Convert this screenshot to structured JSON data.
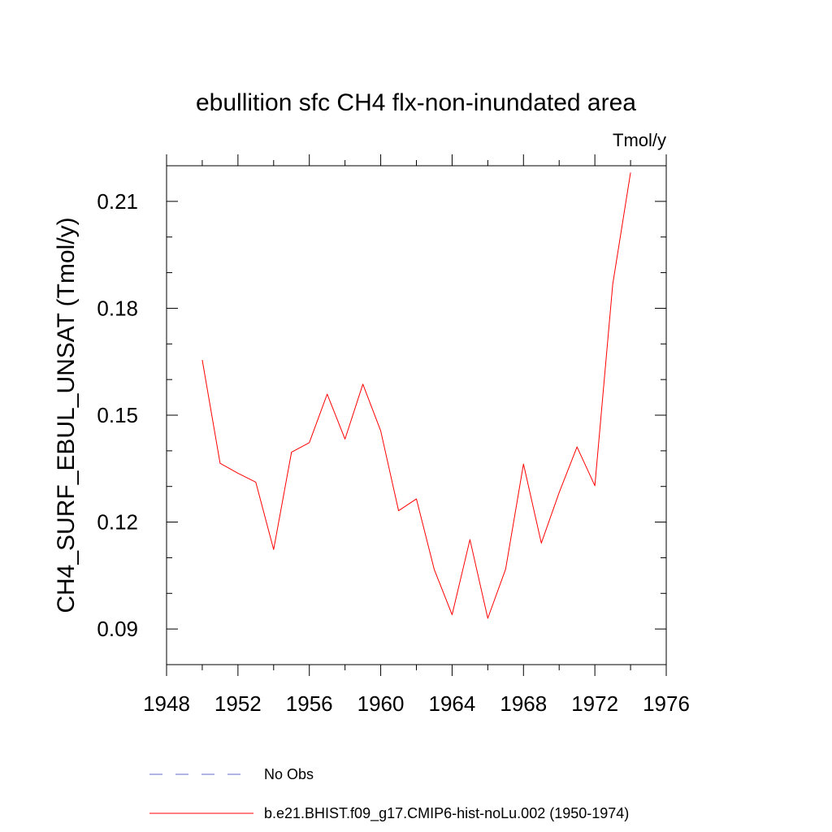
{
  "chart_data": {
    "type": "line",
    "title": "ebullition sfc CH4 flx-non-inundated area",
    "units_label": "Tmol/y",
    "xlabel": "",
    "ylabel": "CH4_SURF_EBUL_UNSAT  (Tmol/y)",
    "xlim": [
      1948,
      1976
    ],
    "ylim": [
      0.08,
      0.22
    ],
    "x_ticks": [
      1948,
      1952,
      1956,
      1960,
      1964,
      1968,
      1972,
      1976
    ],
    "x_tick_labels": [
      "1948",
      "1952",
      "1956",
      "1960",
      "1964",
      "1968",
      "1972",
      "1976"
    ],
    "y_ticks": [
      0.09,
      0.12,
      0.15,
      0.18,
      0.21
    ],
    "y_tick_labels": [
      "0.09",
      "0.12",
      "0.15",
      "0.18",
      "0.21"
    ],
    "grid": false,
    "legend_position": "bottom",
    "series": [
      {
        "name": "b.e21.BHIST.f09_g17.CMIP6-hist-noLu.002 (1950-1974)",
        "color": "#ff0000",
        "style": "solid",
        "x": [
          1950,
          1951,
          1952,
          1953,
          1954,
          1955,
          1956,
          1957,
          1958,
          1959,
          1960,
          1961,
          1962,
          1963,
          1964,
          1965,
          1966,
          1967,
          1968,
          1969,
          1970,
          1971,
          1972,
          1973,
          1974
        ],
        "y": [
          0.1655,
          0.1365,
          0.1337,
          0.1312,
          0.1123,
          0.1396,
          0.1423,
          0.1559,
          0.1433,
          0.1587,
          0.1456,
          0.1232,
          0.1265,
          0.1067,
          0.094,
          0.1151,
          0.093,
          0.1068,
          0.1363,
          0.1141,
          0.1283,
          0.1411,
          0.1302,
          0.1867,
          0.2181
        ]
      }
    ],
    "legend": [
      {
        "label": "No Obs",
        "color": "#6a6ac8",
        "style": "dashed"
      },
      {
        "label": "b.e21.BHIST.f09_g17.CMIP6-hist-noLu.002 (1950-1974)",
        "color": "#ff0000",
        "style": "solid"
      }
    ]
  }
}
